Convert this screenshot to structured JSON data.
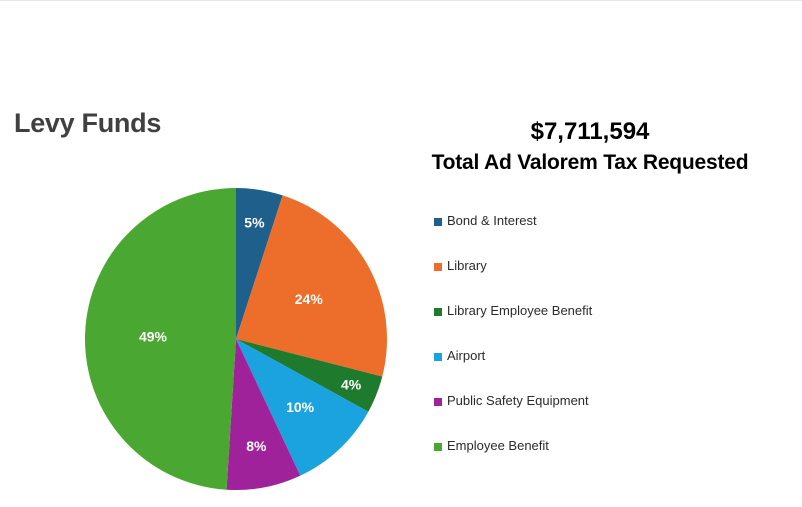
{
  "page": {
    "title": "Levy Funds",
    "total_value": "$7,711,594",
    "total_label": "Total Ad Valorem Tax Requested"
  },
  "chart_data": {
    "type": "pie",
    "title": "",
    "categories": [
      "Bond & Interest",
      "Library",
      "Library Employee Benefit",
      "Airport",
      "Public Safety Equipment",
      "Employee Benefit"
    ],
    "values": [
      5,
      24,
      4,
      10,
      8,
      49
    ],
    "value_labels": [
      "5%",
      "24%",
      "4%",
      "10%",
      "8%",
      "49%"
    ],
    "colors": [
      "#1f5f8b",
      "#ed6d2b",
      "#1e7a2c",
      "#1aa3df",
      "#a0229a",
      "#4aa832"
    ],
    "start_angle_deg": 0,
    "direction": "clockwise",
    "legend": "right"
  }
}
